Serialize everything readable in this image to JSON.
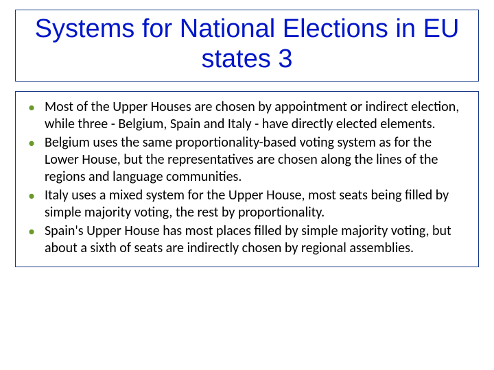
{
  "title": "Systems for National Elections in EU states 3",
  "title_color": "#0016c8",
  "title_fontsize": 38,
  "border_color": "#1a3a8a",
  "bullet_color": "#6a9a2a",
  "body_text_color": "#000000",
  "body_fontsize": 20,
  "background_color": "#ffffff",
  "bullets": [
    "Most of the Upper Houses are chosen by appointment or indirect election, while three - Belgium, Spain and Italy - have directly elected elements.",
    "Belgium uses the same proportionality-based voting system as for the Lower House, but the representatives are chosen along the lines of the regions and language communities.",
    "Italy uses a mixed system for the Upper House, most seats being filled by simple majority voting, the rest by proportionality.",
    "Spain's Upper House has most places filled by simple majority voting, but about a sixth of seats are indirectly chosen by regional assemblies."
  ]
}
